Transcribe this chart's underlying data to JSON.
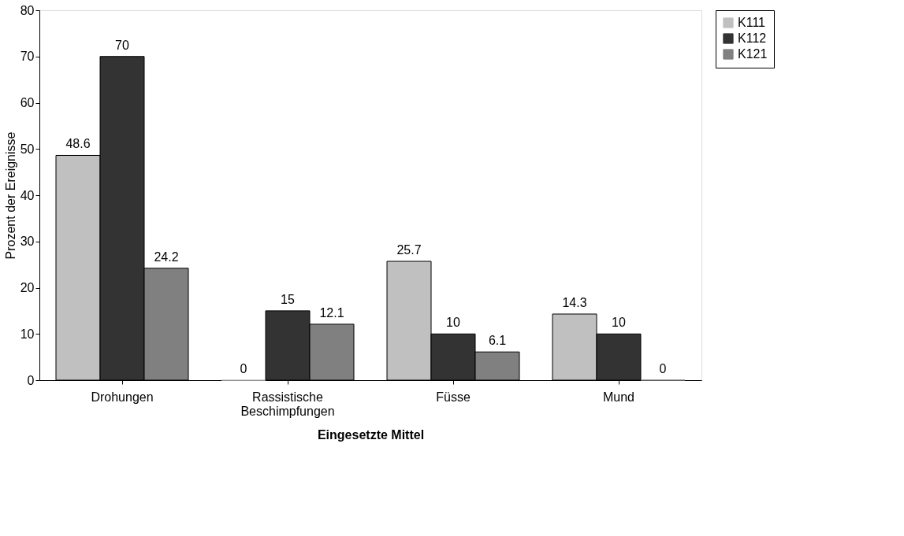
{
  "chart_data": {
    "type": "bar",
    "xlabel": "Eingesetzte Mittel",
    "ylabel": "Prozent der Ereignisse",
    "categories": [
      "Drohungen",
      "Rassistische Beschimpfungen",
      "Füsse",
      "Mund"
    ],
    "series": [
      {
        "name": "K111",
        "color": "#c0c0c0",
        "values": [
          48.6,
          0,
          25.7,
          14.3
        ]
      },
      {
        "name": "K112",
        "color": "#333333",
        "values": [
          70,
          15,
          10,
          10
        ]
      },
      {
        "name": "K121",
        "color": "#808080",
        "values": [
          24.2,
          12.1,
          6.1,
          0
        ]
      }
    ],
    "ylim": [
      0,
      80
    ],
    "yticks": [
      0,
      10,
      20,
      30,
      40,
      50,
      60,
      70,
      80
    ],
    "data_labels": true,
    "grid": false,
    "legend": "right"
  }
}
